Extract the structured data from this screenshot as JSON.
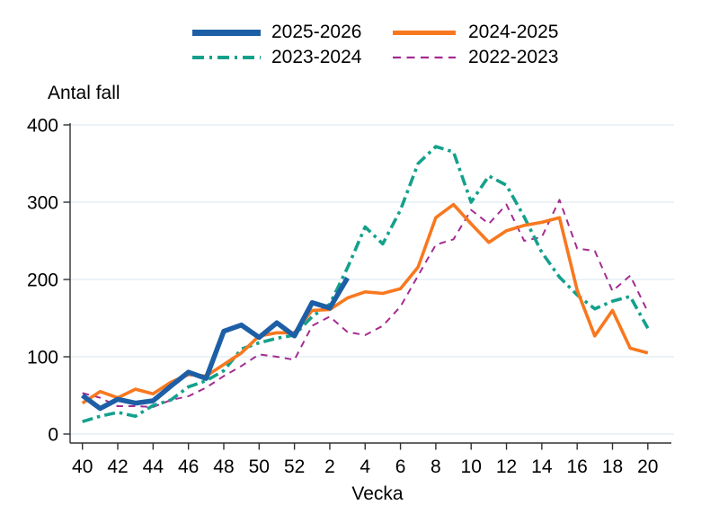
{
  "chart_data": {
    "type": "line",
    "ylabel": "Antal fall",
    "xlabel": "Vecka",
    "ylim": [
      0,
      400
    ],
    "y_ticks": [
      0,
      100,
      200,
      300,
      400
    ],
    "grid_on": true,
    "grid_color": "#dfe9f2",
    "axis_color": "#303030",
    "legend_position": "top-center",
    "x_categories": [
      "40",
      "41",
      "42",
      "43",
      "44",
      "45",
      "46",
      "47",
      "48",
      "49",
      "50",
      "51",
      "52",
      "1",
      "2",
      "3",
      "4",
      "5",
      "6",
      "7",
      "8",
      "9",
      "10",
      "11",
      "12",
      "13",
      "14",
      "15",
      "16",
      "17",
      "18",
      "19",
      "20"
    ],
    "x_tick_labels": [
      "40",
      "42",
      "44",
      "46",
      "48",
      "50",
      "52",
      "2",
      "4",
      "6",
      "8",
      "10",
      "12",
      "14",
      "16",
      "18",
      "20"
    ],
    "series": [
      {
        "name": "2025-2026",
        "color": "#1d5fa6",
        "style": "solid-thick",
        "width": 5.5,
        "values": [
          50,
          33,
          45,
          40,
          43,
          62,
          80,
          72,
          133,
          141,
          125,
          144,
          127,
          170,
          163,
          202,
          null,
          null,
          null,
          null,
          null,
          null,
          null,
          null,
          null,
          null,
          null,
          null,
          null,
          null,
          null,
          null,
          null
        ]
      },
      {
        "name": "2024-2025",
        "color": "#f8781f",
        "style": "solid",
        "width": 3.6,
        "values": [
          40,
          55,
          47,
          58,
          52,
          67,
          77,
          75,
          90,
          105,
          127,
          131,
          131,
          160,
          161,
          176,
          184,
          182,
          188,
          216,
          280,
          297,
          272,
          248,
          263,
          270,
          274,
          280,
          186,
          127,
          160,
          111,
          105
        ]
      },
      {
        "name": "2023-2024",
        "color": "#14a18c",
        "style": "dashdot",
        "width": 3.6,
        "values": [
          16,
          23,
          28,
          23,
          37,
          44,
          61,
          69,
          82,
          110,
          118,
          124,
          128,
          152,
          168,
          215,
          268,
          246,
          290,
          350,
          372,
          365,
          300,
          334,
          322,
          281,
          235,
          203,
          180,
          162,
          172,
          178,
          137
        ]
      },
      {
        "name": "2022-2023",
        "color": "#a52b92",
        "style": "dashed",
        "width": 2,
        "values": [
          53,
          47,
          36,
          36,
          35,
          44,
          49,
          60,
          75,
          88,
          103,
          100,
          96,
          140,
          152,
          132,
          128,
          140,
          165,
          205,
          245,
          252,
          290,
          272,
          297,
          250,
          255,
          303,
          240,
          237,
          185,
          205,
          158
        ]
      }
    ]
  }
}
